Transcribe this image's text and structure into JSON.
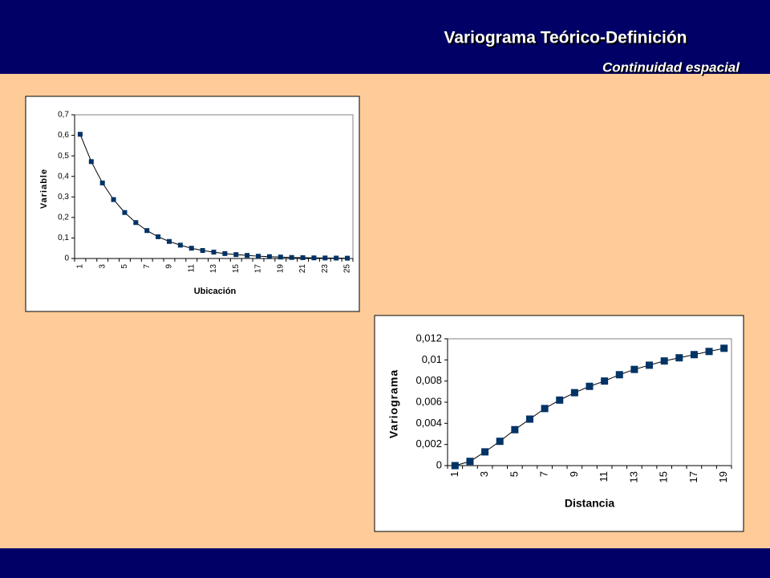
{
  "header": {
    "title": "Variograma Teórico-Definición",
    "subtitle": "Continuidad espacial"
  },
  "chart_data": [
    {
      "type": "line",
      "xlabel": "Ubicación",
      "ylabel": "Variable",
      "color": "#003366",
      "categories": [
        "1",
        null,
        "3",
        null,
        "5",
        null,
        "7",
        null,
        "9",
        null,
        "11",
        null,
        "13",
        null,
        "15",
        null,
        "17",
        null,
        "19",
        null,
        "21",
        null,
        "23",
        null,
        "25"
      ],
      "values": [
        0.605,
        0.472,
        0.368,
        0.287,
        0.224,
        0.175,
        0.136,
        0.106,
        0.083,
        0.065,
        0.05,
        0.039,
        0.031,
        0.024,
        0.019,
        0.015,
        0.011,
        0.009,
        0.007,
        0.005,
        0.004,
        0.003,
        0.0025,
        0.002,
        0.0015
      ],
      "ylim": [
        0,
        0.7
      ],
      "yticks": [
        0,
        {
          "value": 0.1,
          "label": "0,1"
        },
        {
          "value": 0.2,
          "label": "0,2"
        },
        {
          "value": 0.3,
          "label": "0,3"
        },
        {
          "value": 0.4,
          "label": "0,4"
        },
        {
          "value": 0.5,
          "label": "0,5"
        },
        {
          "value": 0.6,
          "label": "0,6"
        },
        {
          "value": 0.7,
          "label": "0,7"
        }
      ]
    },
    {
      "type": "line",
      "xlabel": "Distancia",
      "ylabel": "Variograma",
      "color": "#003366",
      "categories": [
        "1",
        null,
        "3",
        null,
        "5",
        null,
        "7",
        null,
        "9",
        null,
        "11",
        null,
        "13",
        null,
        "15",
        null,
        "17",
        null,
        "19"
      ],
      "values": [
        0,
        0.0004,
        0.0013,
        0.0023,
        0.0034,
        0.0044,
        0.0054,
        0.0062,
        0.0069,
        0.0075,
        0.008,
        0.0086,
        0.0091,
        0.0095,
        0.0099,
        0.0102,
        0.0105,
        0.0108,
        0.0111
      ],
      "ylim": [
        0,
        0.012
      ],
      "yticks": [
        0,
        {
          "value": 0.002,
          "label": "0,002"
        },
        {
          "value": 0.004,
          "label": "0,004"
        },
        {
          "value": 0.006,
          "label": "0,006"
        },
        {
          "value": 0.008,
          "label": "0,008"
        },
        {
          "value": 0.01,
          "label": "0,01"
        },
        {
          "value": 0.012,
          "label": "0,012"
        }
      ]
    }
  ]
}
